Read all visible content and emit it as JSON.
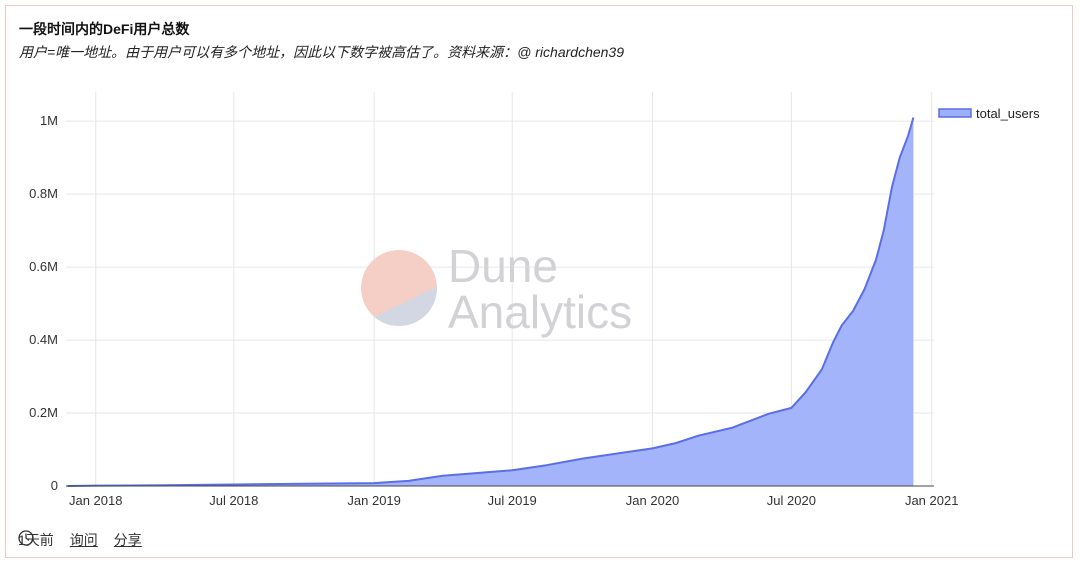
{
  "header": {
    "title": "一段时间内的DeFi用户总数",
    "subtitle": "用户=唯一地址。由于用户可以有多个地址，因此以下数字被高估了。资料来源：@ richardchen39"
  },
  "watermark": {
    "line1": "Dune",
    "line2": "Analytics"
  },
  "footer": {
    "age": "1天前",
    "query_label": "询问",
    "share_label": "分享",
    "clock_icon": "clock-icon"
  },
  "colors": {
    "line": "#5a6ee8",
    "fill": "#9fb0fa",
    "watermark_top": "#f5cfc6",
    "watermark_bottom": "#d3d6e3",
    "border": "#f0c9bf"
  },
  "chart_data": {
    "type": "area",
    "grid": true,
    "legend_position": "top-right",
    "x_ticks": [
      "Jan 2018",
      "Jul 2018",
      "Jan 2019",
      "Jul 2019",
      "Jan 2020",
      "Jul 2020",
      "Jan 2021"
    ],
    "x_tick_dates": [
      "2018-01-01",
      "2018-07-01",
      "2019-01-01",
      "2019-07-01",
      "2020-01-01",
      "2020-07-01",
      "2021-01-01"
    ],
    "y_ticks": [
      "0",
      "0.2M",
      "0.4M",
      "0.6M",
      "0.8M",
      "1M"
    ],
    "y_tick_values": [
      0,
      200000,
      400000,
      600000,
      800000,
      1000000
    ],
    "xlim": [
      "2017-11-23",
      "2021-01-04"
    ],
    "ylim": [
      0,
      1000000
    ],
    "series": [
      {
        "name": "total_users",
        "x": [
          "2017-11-25",
          "2018-01-01",
          "2018-04-01",
          "2018-07-01",
          "2018-10-01",
          "2019-01-01",
          "2019-02-15",
          "2019-04-01",
          "2019-07-01",
          "2019-08-15",
          "2019-10-01",
          "2020-01-01",
          "2020-02-01",
          "2020-03-01",
          "2020-04-15",
          "2020-06-01",
          "2020-07-01",
          "2020-07-20",
          "2020-08-10",
          "2020-08-25",
          "2020-09-05",
          "2020-09-20",
          "2020-10-05",
          "2020-10-20",
          "2020-10-30",
          "2020-11-10",
          "2020-11-20",
          "2020-12-01",
          "2020-12-08"
        ],
        "y": [
          0,
          1000,
          2000,
          4000,
          6000,
          8000,
          14000,
          28000,
          43000,
          57000,
          75000,
          103000,
          118000,
          138000,
          160000,
          198000,
          214000,
          258000,
          320000,
          395000,
          440000,
          480000,
          540000,
          620000,
          700000,
          820000,
          900000,
          960000,
          1010000
        ]
      }
    ]
  }
}
